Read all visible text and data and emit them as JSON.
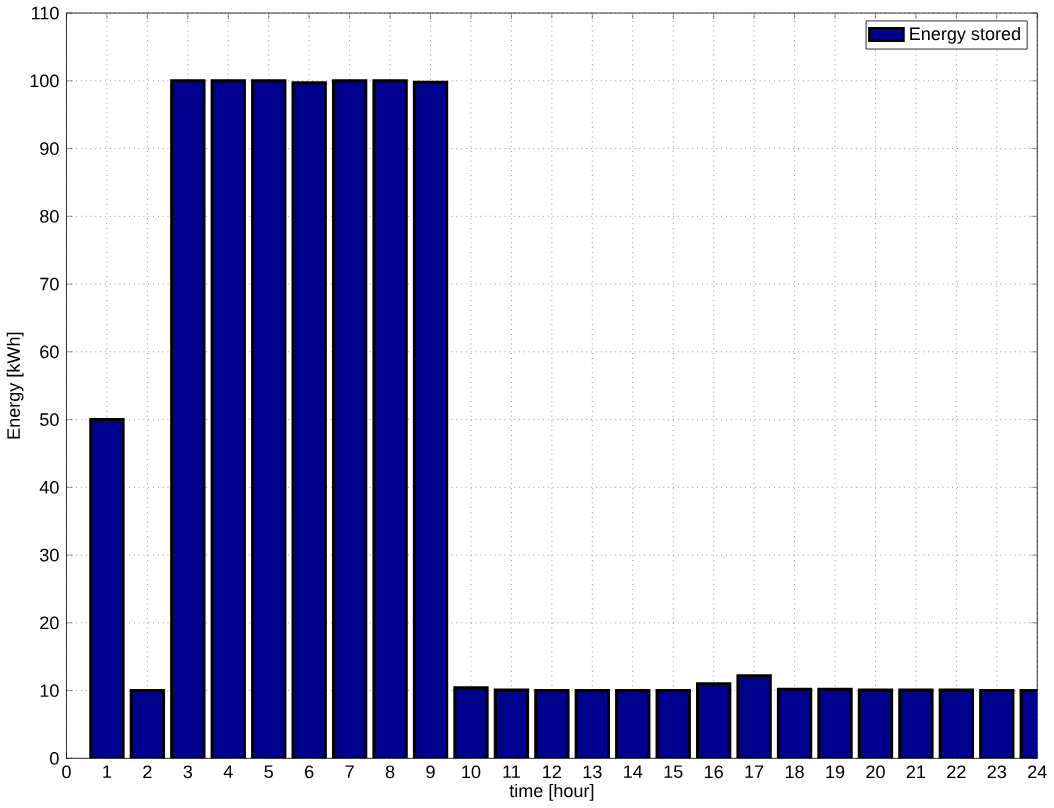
{
  "chart_data": {
    "type": "bar",
    "xlabel": "time [hour]",
    "ylabel": "Energy [kWh]",
    "x": [
      1,
      2,
      3,
      4,
      5,
      6,
      7,
      8,
      9,
      10,
      11,
      12,
      13,
      14,
      15,
      16,
      17,
      18,
      19,
      20,
      21,
      22,
      23,
      24
    ],
    "series": [
      {
        "name": "Energy stored",
        "color": "#00008f",
        "values": [
          50,
          10,
          100,
          100,
          100,
          99.7,
          100,
          100,
          99.8,
          10.4,
          10.1,
          10,
          10,
          10,
          10,
          11,
          12.2,
          10.2,
          10.2,
          10.1,
          10.1,
          10.1,
          10,
          10
        ]
      }
    ],
    "xlim": [
      0,
      24
    ],
    "xticks": [
      0,
      1,
      2,
      3,
      4,
      5,
      6,
      7,
      8,
      9,
      10,
      11,
      12,
      13,
      14,
      15,
      16,
      17,
      18,
      19,
      20,
      21,
      22,
      23,
      24
    ],
    "ylim": [
      0,
      110
    ],
    "yticks": [
      0,
      10,
      20,
      30,
      40,
      50,
      60,
      70,
      80,
      90,
      100,
      110
    ],
    "grid": true,
    "legend": "top right"
  }
}
